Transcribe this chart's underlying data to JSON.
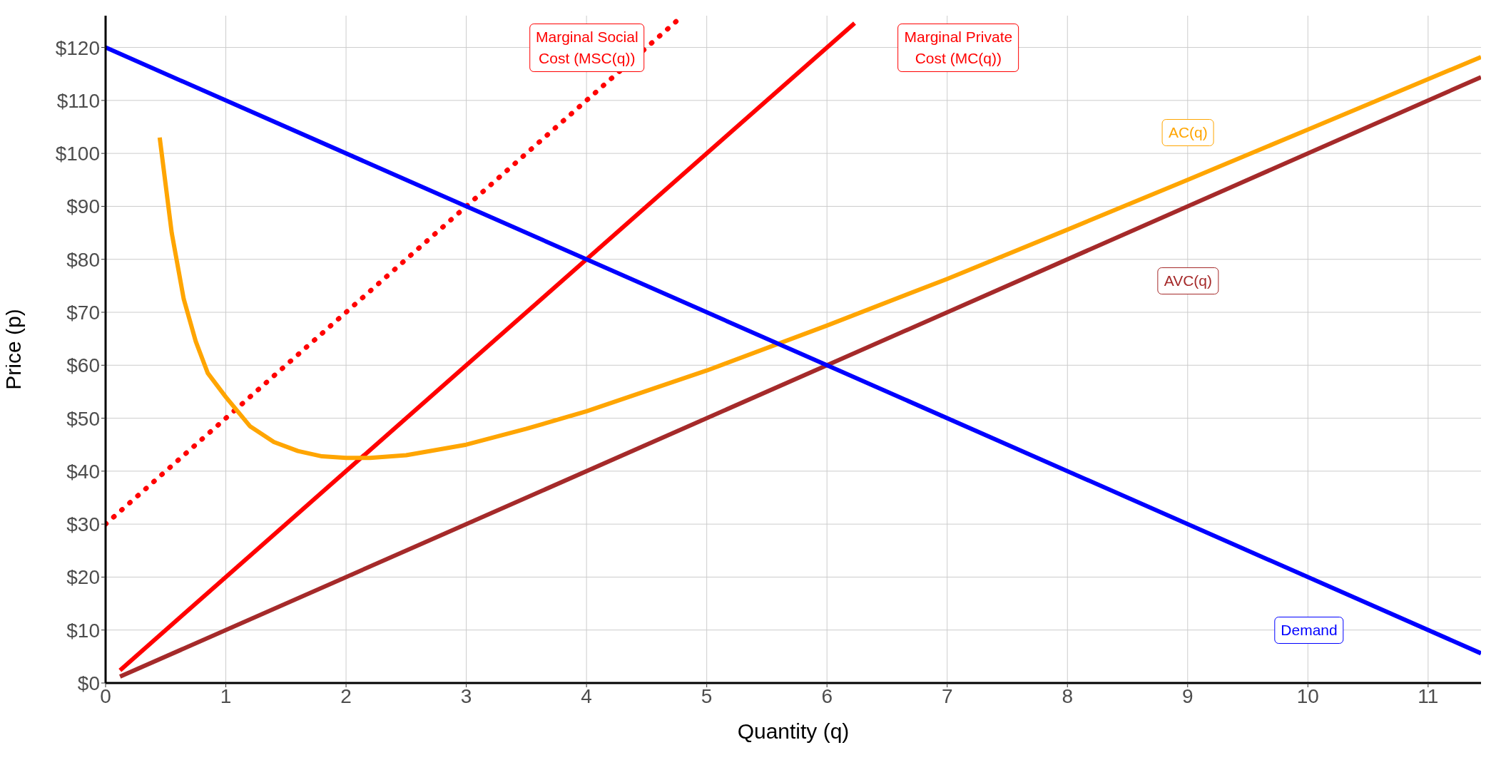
{
  "chart_data": {
    "type": "line",
    "xlabel": "Quantity (q)",
    "ylabel": "Price (p)",
    "xlim": [
      0,
      11.44
    ],
    "ylim": [
      0,
      126
    ],
    "xticks": [
      0,
      1,
      2,
      3,
      4,
      5,
      6,
      7,
      8,
      9,
      10,
      11
    ],
    "yticks": [
      {
        "value": 0,
        "label": "$0"
      },
      {
        "value": 10,
        "label": "$10"
      },
      {
        "value": 20,
        "label": "$20"
      },
      {
        "value": 30,
        "label": "$30"
      },
      {
        "value": 40,
        "label": "$40"
      },
      {
        "value": 50,
        "label": "$50"
      },
      {
        "value": 60,
        "label": "$60"
      },
      {
        "value": 70,
        "label": "$70"
      },
      {
        "value": 80,
        "label": "$80"
      },
      {
        "value": 90,
        "label": "$90"
      },
      {
        "value": 100,
        "label": "$100"
      },
      {
        "value": 110,
        "label": "$110"
      },
      {
        "value": 120,
        "label": "$120"
      }
    ],
    "grid": true,
    "marker": "none",
    "series": [
      {
        "name": "Marginal Social\nCost (MSC(q))",
        "color": "#ff0000",
        "line_style": "dotted",
        "x": [
          0,
          4.8
        ],
        "values": [
          30,
          126
        ]
      },
      {
        "name": "Marginal Private\nCost (MC(q))",
        "color": "#ff0000",
        "line_style": "solid",
        "x": [
          0.12,
          6.23
        ],
        "values": [
          2.4,
          124.6
        ]
      },
      {
        "name": "AC(q)",
        "color": "#ffa500",
        "line_style": "solid",
        "x": [
          0.45,
          0.55,
          0.65,
          0.75,
          0.85,
          1,
          1.2,
          1.4,
          1.6,
          1.8,
          2,
          2.2,
          2.5,
          3,
          3.5,
          4,
          5,
          6,
          7,
          8,
          9,
          10,
          11.44
        ],
        "values": [
          103,
          85,
          72.5,
          64.5,
          58.5,
          54,
          48.5,
          45.5,
          43.8,
          42.8,
          42.5,
          42.5,
          43,
          45,
          48,
          51.3,
          59,
          67.5,
          76.3,
          85.6,
          95,
          104.5,
          118.2
        ]
      },
      {
        "name": "AVC(q)",
        "color": "#a52a2a",
        "line_style": "solid",
        "x": [
          0.12,
          11.44
        ],
        "values": [
          1.2,
          114.4
        ]
      },
      {
        "name": "Demand",
        "color": "#0000ff",
        "line_style": "solid",
        "x": [
          0,
          11.44
        ],
        "values": [
          120,
          5.6
        ]
      }
    ]
  }
}
